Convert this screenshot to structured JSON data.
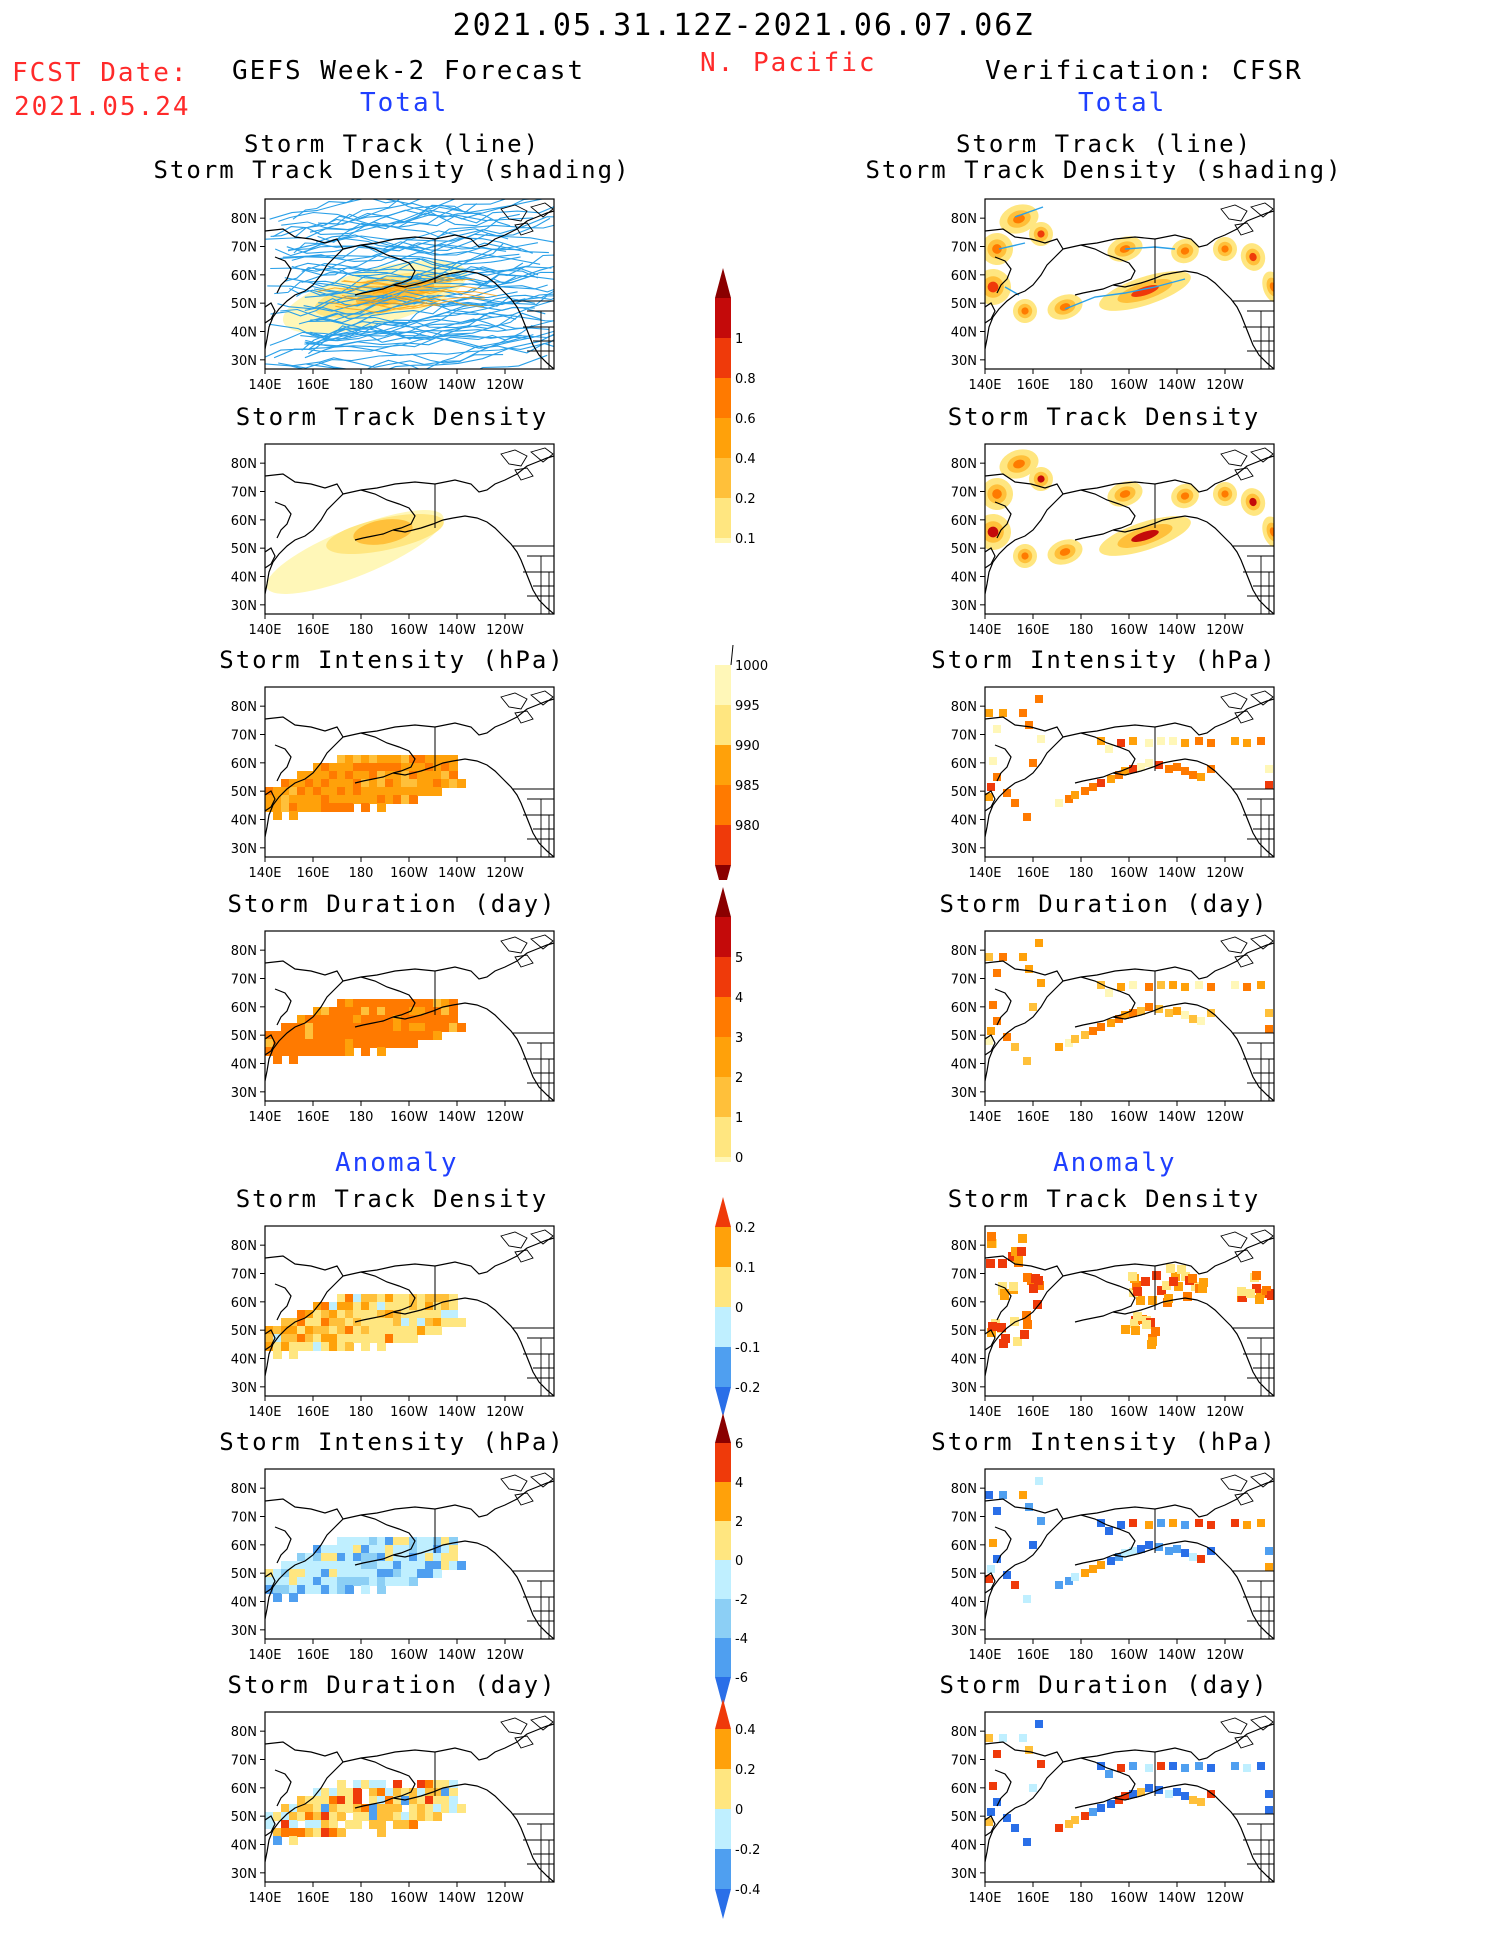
{
  "header": {
    "date_range": "2021.05.31.12Z-2021.06.07.06Z",
    "region": "N. Pacific",
    "fcst_label": "FCST Date:",
    "fcst_date": "2021.05.24",
    "left_title": "GEFS Week-2 Forecast",
    "right_title": "Verification: CFSR",
    "total_label": "Total",
    "anomaly_label": "Anomaly"
  },
  "panel_titles": {
    "track": [
      "Storm Track (line)",
      "Storm Track Density (shading)"
    ],
    "density": "Storm Track Density",
    "intensity": "Storm Intensity (hPa)",
    "duration": "Storm Duration (day)"
  },
  "axes": {
    "lat_ticks": [
      "80N",
      "70N",
      "60N",
      "50N",
      "40N",
      "30N"
    ],
    "lon_ticks": [
      "140E",
      "160E",
      "180",
      "160W",
      "140W",
      "120W"
    ]
  },
  "colors": {
    "c0": "#fff7b8",
    "c1": "#ffe680",
    "c2": "#ffc03a",
    "c3": "#ffa10a",
    "c4": "#ff7a00",
    "c5": "#ef3a0a",
    "c6": "#c40a0a",
    "c7": "#8a0000",
    "b1": "#bfefff",
    "b2": "#8ccff5",
    "b3": "#4f9ff0",
    "b4": "#2a6fe8",
    "b5": "#1a4fcf",
    "track_line": "#2aa0e8"
  },
  "chart_data": [
    {
      "type": "heatmap",
      "name": "Total Storm Track Density colorbar",
      "levels": [
        "0.1",
        "0.2",
        "0.4",
        "0.6",
        "0.8",
        "1"
      ]
    },
    {
      "type": "heatmap",
      "name": "Total Storm Intensity colorbar",
      "levels": [
        "1000",
        "995",
        "990",
        "985",
        "980"
      ]
    },
    {
      "type": "heatmap",
      "name": "Total Storm Duration colorbar",
      "levels": [
        "0",
        "1",
        "2",
        "3",
        "4",
        "5"
      ]
    },
    {
      "type": "heatmap",
      "name": "Anomaly Storm Track Density colorbar",
      "levels": [
        "0.2",
        "0.1",
        "0",
        "-0.1",
        "-0.2"
      ]
    },
    {
      "type": "heatmap",
      "name": "Anomaly Storm Intensity colorbar",
      "levels": [
        "6",
        "4",
        "2",
        "0",
        "-2",
        "-4",
        "-6"
      ]
    },
    {
      "type": "heatmap",
      "name": "Anomaly Storm Duration colorbar",
      "levels": [
        "0.4",
        "0.2",
        "0",
        "-0.2",
        "-0.4"
      ]
    }
  ]
}
